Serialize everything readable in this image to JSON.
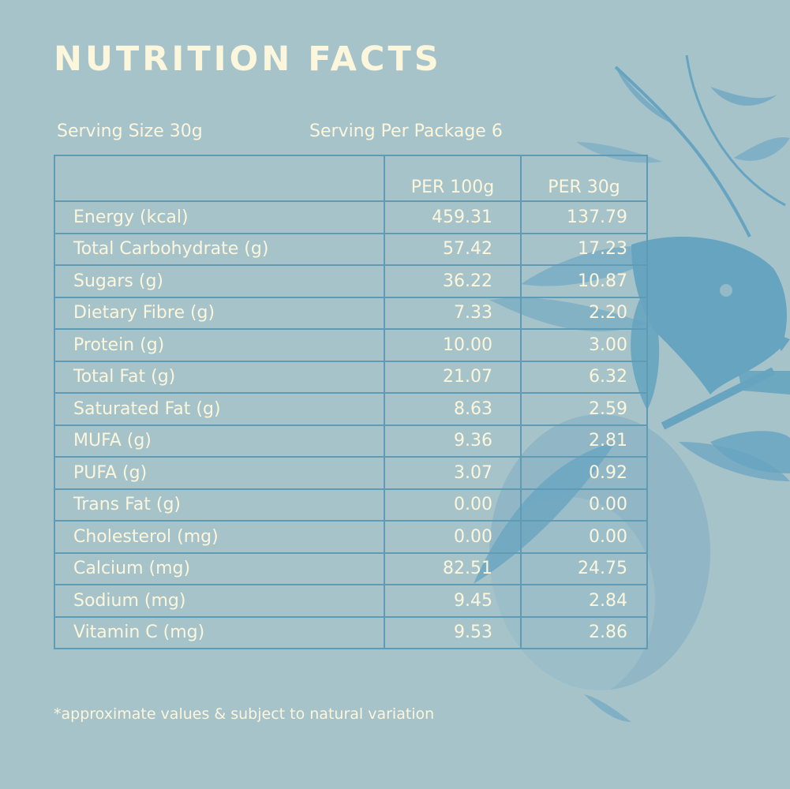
{
  "title": "NUTRITION FACTS",
  "serving_size": "Serving Size 30g",
  "servings_per_package": "Serving Per Package 6",
  "table": {
    "headers": [
      "",
      "PER 100g",
      "PER 30g"
    ],
    "rows": [
      {
        "nutrient": "Energy (kcal)",
        "per100": "459.31",
        "per30": "137.79"
      },
      {
        "nutrient": "Total Carbohydrate (g)",
        "per100": "57.42",
        "per30": "17.23"
      },
      {
        "nutrient": "Sugars (g)",
        "per100": "36.22",
        "per30": "10.87"
      },
      {
        "nutrient": "Dietary Fibre (g)",
        "per100": "7.33",
        "per30": "2.20"
      },
      {
        "nutrient": "Protein (g)",
        "per100": "10.00",
        "per30": "3.00"
      },
      {
        "nutrient": "Total Fat (g)",
        "per100": "21.07",
        "per30": "6.32"
      },
      {
        "nutrient": "Saturated Fat (g)",
        "per100": "8.63",
        "per30": "2.59"
      },
      {
        "nutrient": "MUFA (g)",
        "per100": "9.36",
        "per30": "2.81"
      },
      {
        "nutrient": "PUFA (g)",
        "per100": "3.07",
        "per30": "0.92"
      },
      {
        "nutrient": "Trans Fat (g)",
        "per100": "0.00",
        "per30": "0.00"
      },
      {
        "nutrient": "Cholesterol (mg)",
        "per100": "0.00",
        "per30": "0.00"
      },
      {
        "nutrient": "Calcium (mg)",
        "per100": "82.51",
        "per30": "24.75"
      },
      {
        "nutrient": "Sodium (mg)",
        "per100": "9.45",
        "per30": "2.84"
      },
      {
        "nutrient": "Vitamin C (mg)",
        "per100": "9.53",
        "per30": "2.86"
      }
    ]
  },
  "footnote": "*approximate values & subject to natural variation",
  "colors": {
    "background": "#a7c3ca",
    "text": "#fbf6dc",
    "table_border": "#5f9bb4",
    "illustration": "#5b9fbf"
  },
  "decoration": {
    "icon": "bird-on-orange-branch-illustration"
  }
}
